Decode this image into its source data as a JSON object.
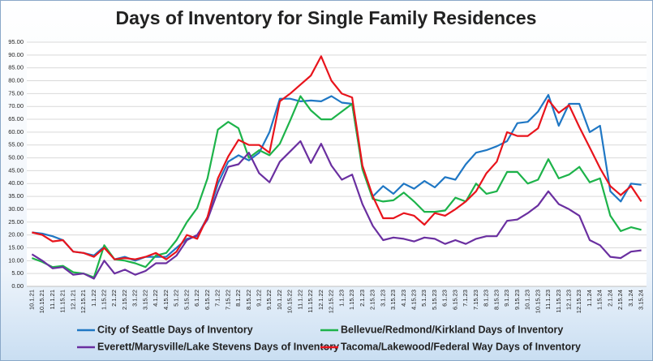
{
  "chart_data": {
    "type": "line",
    "title": "Days of Inventory for Single Family Residences",
    "categories": [
      "10.1.21",
      "10.15.21",
      "11.1.21",
      "11.15.21",
      "12.1.21",
      "12.15.21",
      "1.1.22",
      "1.15.22",
      "2.1.22",
      "2.15.22",
      "3.1.22",
      "3.15.22",
      "4.1.22",
      "4.15.22",
      "5.1.22",
      "5.15.22",
      "6.1.22",
      "6.15.22",
      "7.1.22",
      "7.15.22",
      "8.1.22",
      "8.15.22",
      "9.1.22",
      "9.15.22",
      "10.1.22",
      "10.15.22",
      "11.1.22",
      "11.15.22",
      "12.1.22",
      "12.15.22",
      "1.1.23",
      "1.15.23",
      "2.1.23",
      "2.15.23",
      "3.1.23",
      "3.15.23",
      "4.1.23",
      "4.15.23",
      "5.1.23",
      "5.15.23",
      "6.1.23",
      "6.15.23",
      "7.1.23",
      "7.15.23",
      "8.1.23",
      "8.15.23",
      "9.1.23",
      "9.15.23",
      "10.1.23",
      "10.15.23",
      "11.1.23",
      "11.15.23",
      "12.1.23",
      "12.15.23",
      "1.1.24",
      "1.15.24",
      "2.1.24",
      "2.15.24",
      "3.1.24",
      "3.15.24"
    ],
    "series": [
      {
        "name": "City of Seattle Days of Inventory",
        "color": "#1f77c4",
        "values": [
          21,
          20.5,
          19.5,
          18,
          13.5,
          13,
          12,
          15.5,
          10.5,
          11.5,
          10,
          11.5,
          11.5,
          11.5,
          15,
          18.5,
          19.5,
          27,
          40,
          48.5,
          51,
          49,
          52,
          60,
          73,
          73,
          72,
          72.3,
          72,
          74,
          71.5,
          71,
          46,
          35,
          39,
          36,
          40,
          38,
          41,
          38.5,
          42.5,
          41.5,
          47.5,
          52,
          53,
          54.5,
          56.5,
          63.5,
          64,
          68,
          74.5,
          62.5,
          71,
          71,
          60,
          62.5,
          37,
          33,
          40,
          39.5
        ]
      },
      {
        "name": "Bellevue/Redmond/Kirkland Days of Inventory",
        "color": "#1db34a",
        "values": [
          11,
          9.5,
          7.5,
          8,
          5.5,
          5,
          3.5,
          16,
          10.5,
          10,
          9,
          7.5,
          12,
          13,
          18,
          25,
          30.5,
          42,
          61,
          64,
          61.5,
          50,
          53,
          51,
          55.5,
          64.5,
          74,
          68.5,
          65,
          65,
          68,
          71,
          45.5,
          34,
          33,
          33.5,
          36.5,
          33,
          29,
          29,
          29.5,
          34.5,
          33,
          40,
          36,
          37,
          44.5,
          44.5,
          40,
          41.5,
          49.5,
          42,
          43.5,
          46.5,
          40.5,
          42,
          27.5,
          21.5,
          23,
          22
        ]
      },
      {
        "name": "Everett/Marysville/Lake Stevens Days of Inventory",
        "color": "#6a2fa0",
        "values": [
          12.5,
          10,
          7,
          7.5,
          4.5,
          5,
          3,
          10,
          5,
          6.5,
          4.5,
          6,
          9,
          9,
          12,
          18,
          20,
          26,
          37,
          46.5,
          47.5,
          52,
          44,
          40.5,
          48.5,
          52.5,
          56.5,
          48,
          55.5,
          47,
          41.5,
          43.5,
          32,
          23.5,
          18,
          19,
          18.5,
          17.5,
          19,
          18.5,
          16.5,
          18,
          16.5,
          18.5,
          19.5,
          19.5,
          25.5,
          26,
          28.5,
          31.5,
          37,
          32,
          30,
          27.5,
          18,
          16,
          11.5,
          11,
          13.5,
          14
        ]
      },
      {
        "name": "Tacoma/Lakewood/Federal Way Days of Inventory",
        "color": "#e8141c",
        "values": [
          21,
          20,
          17.5,
          18,
          13.5,
          13,
          11.5,
          15,
          10.5,
          11,
          10.5,
          11.5,
          13,
          10.5,
          13.5,
          20,
          18.5,
          27,
          42,
          50.5,
          57,
          55,
          55,
          52,
          72,
          75,
          78.5,
          82,
          89.5,
          80,
          75,
          73.5,
          47,
          35,
          26.5,
          26.5,
          28.5,
          27.5,
          24,
          28.5,
          27.5,
          30,
          33,
          37,
          44,
          48.5,
          60,
          58.5,
          58.5,
          61.5,
          72.5,
          67.5,
          70.5,
          62,
          54,
          46,
          39,
          35.5,
          39,
          33
        ]
      }
    ],
    "ylim": [
      0,
      95
    ],
    "yticks": [
      {
        "value": 0,
        "label": "0.00"
      },
      {
        "value": 5,
        "label": "5.00"
      },
      {
        "value": 10,
        "label": "10.00"
      },
      {
        "value": 15,
        "label": "15.00"
      },
      {
        "value": 20,
        "label": "20.00"
      },
      {
        "value": 25,
        "label": "25.00"
      },
      {
        "value": 30,
        "label": "30.00"
      },
      {
        "value": 35,
        "label": "35.00"
      },
      {
        "value": 40,
        "label": "40.00"
      },
      {
        "value": 45,
        "label": "45.00"
      },
      {
        "value": 50,
        "label": "50.00"
      },
      {
        "value": 55,
        "label": "55.00"
      },
      {
        "value": 60,
        "label": "60.00"
      },
      {
        "value": 65,
        "label": "65.00"
      },
      {
        "value": 70,
        "label": "70.00"
      },
      {
        "value": 75,
        "label": "75.00"
      },
      {
        "value": 80,
        "label": "80.00"
      },
      {
        "value": 85,
        "label": "85.00"
      },
      {
        "value": 90,
        "label": "90.00"
      },
      {
        "value": 95,
        "label": "95.00"
      }
    ],
    "grid": true,
    "legend": "bottom"
  }
}
